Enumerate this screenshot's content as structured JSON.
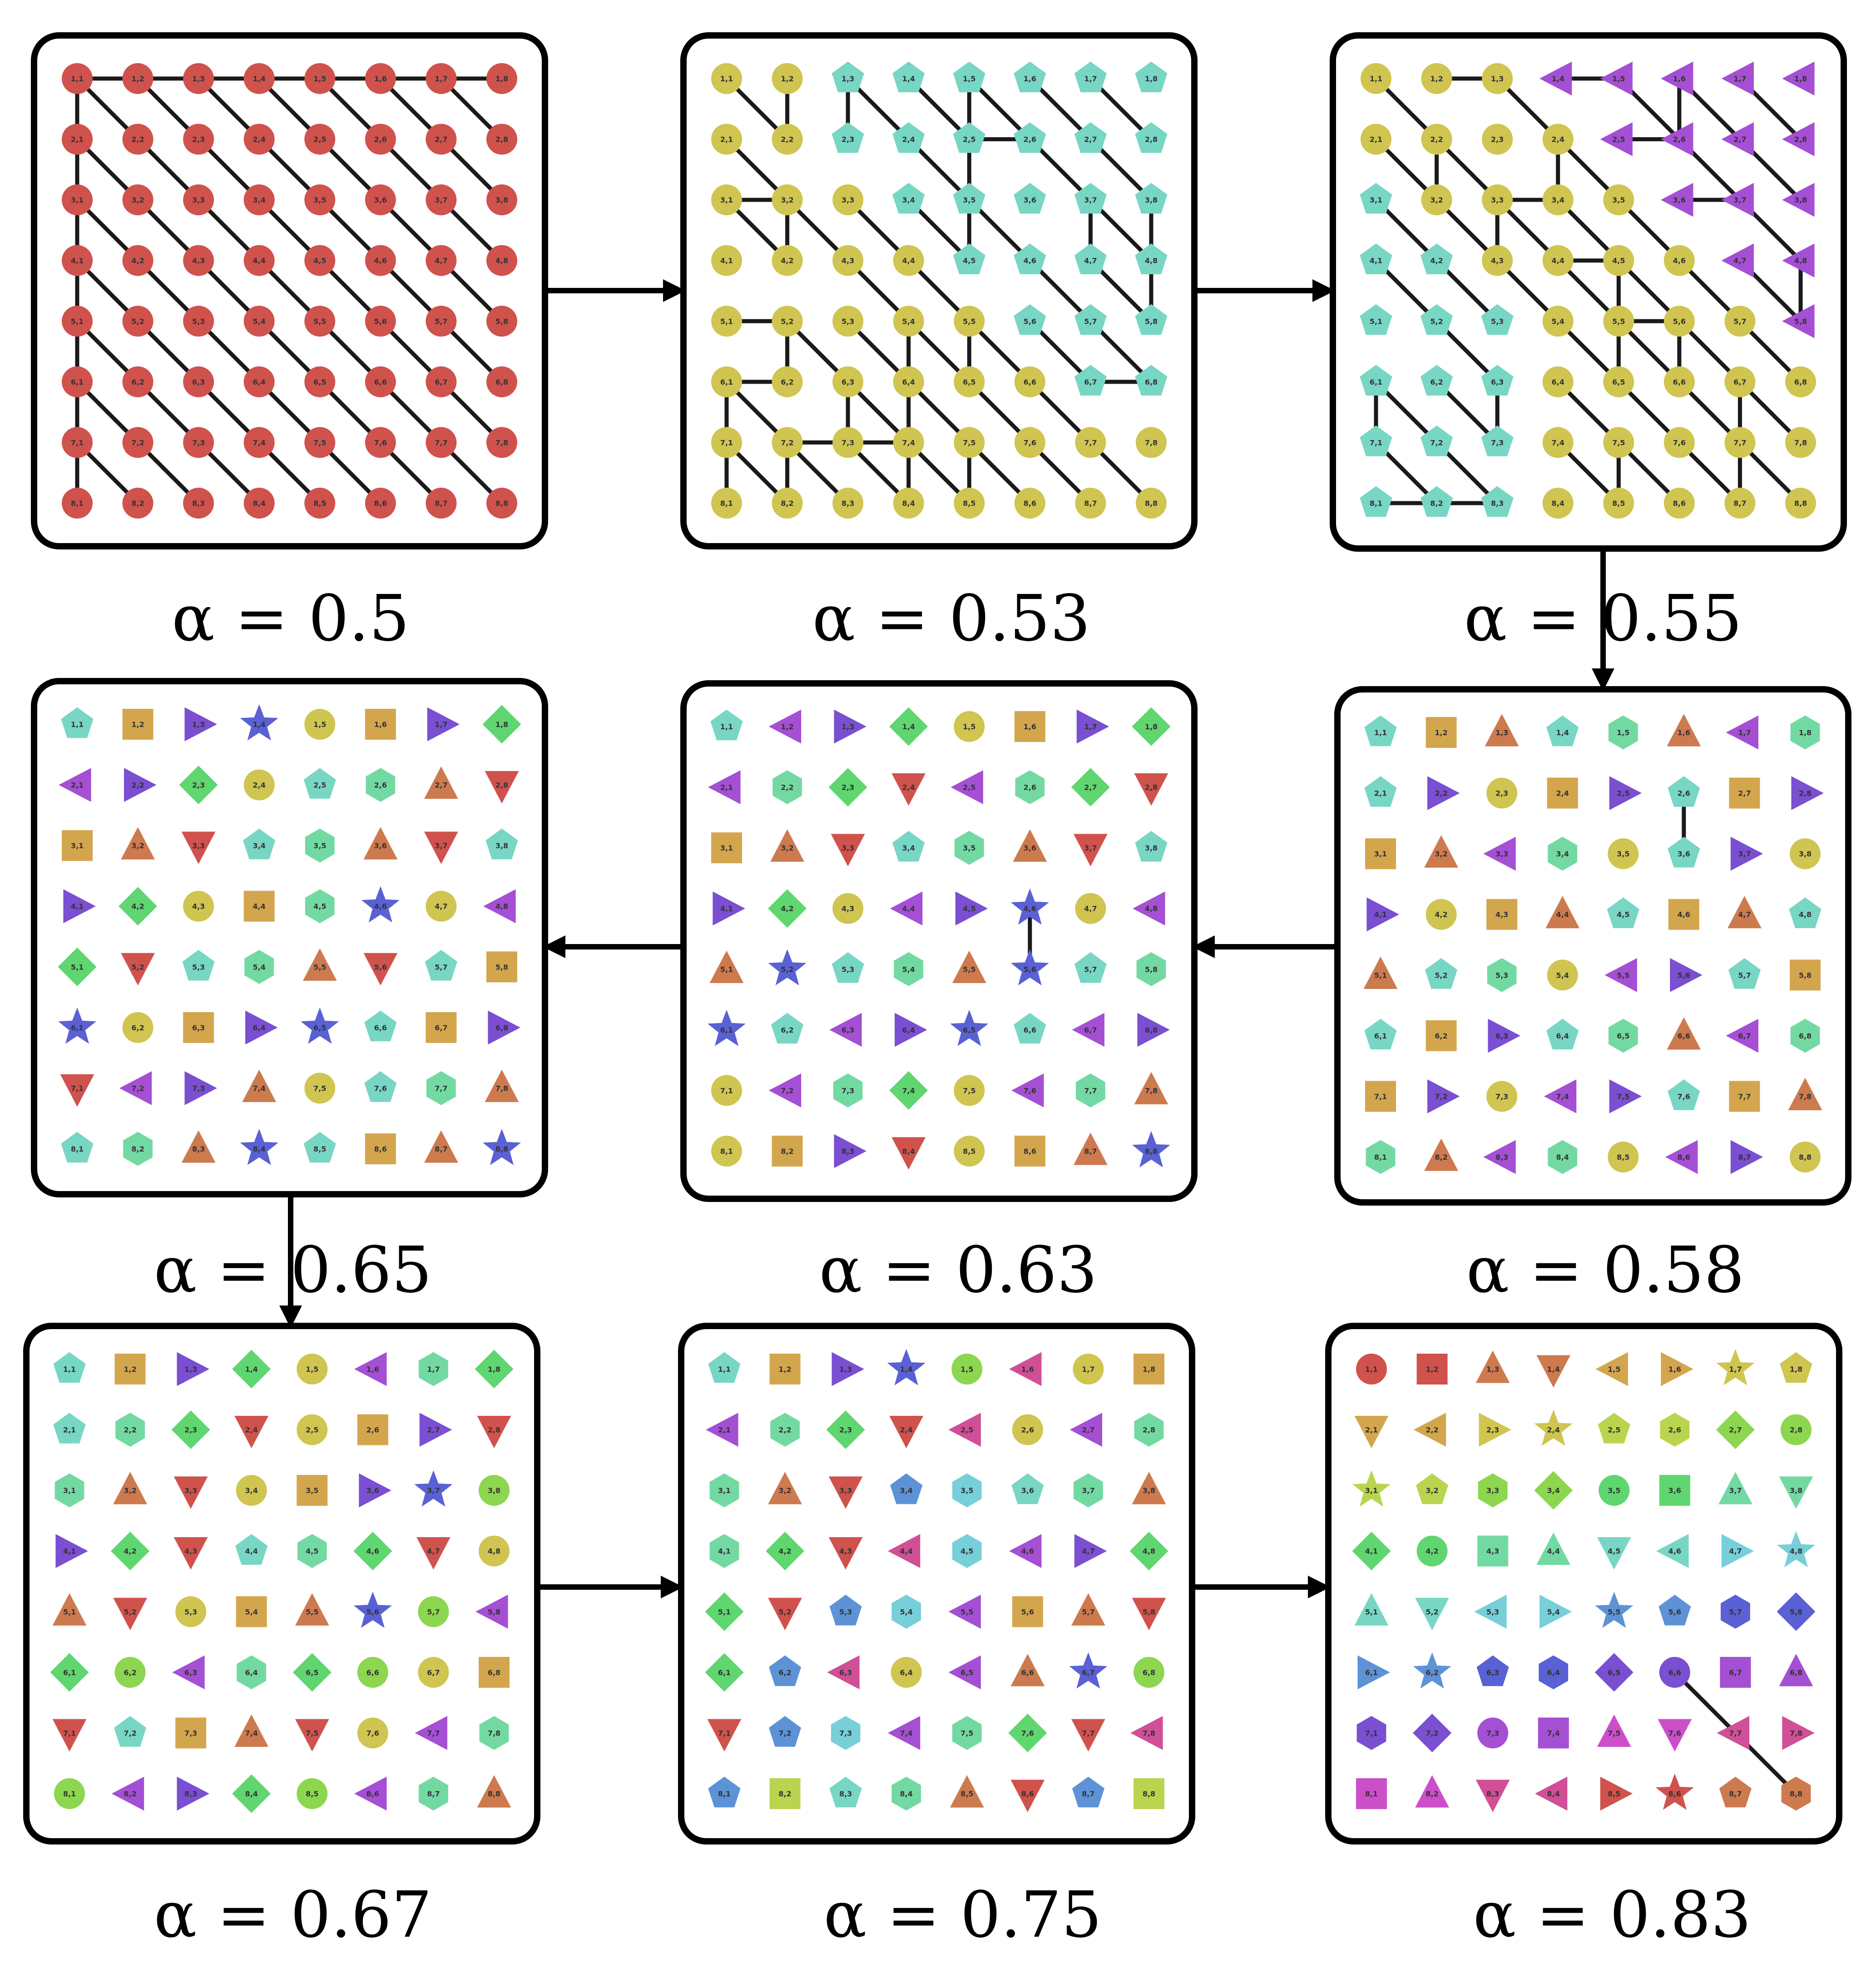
{
  "figure": {
    "panels": [
      {
        "label": "α = 0.5",
        "alpha": 0.5,
        "regime": "single-cluster"
      },
      {
        "label": "α = 0.53",
        "alpha": 0.53,
        "regime": "two-clusters"
      },
      {
        "label": "α = 0.55",
        "alpha": 0.55,
        "regime": "three-clusters"
      },
      {
        "label": "α = 0.58",
        "alpha": 0.58,
        "regime": "fragmenting"
      },
      {
        "label": "α = 0.63",
        "alpha": 0.63,
        "regime": "fragmenting"
      },
      {
        "label": "α = 0.65",
        "alpha": 0.65,
        "regime": "fragmenting"
      },
      {
        "label": "α = 0.67",
        "alpha": 0.67,
        "regime": "fragmenting"
      },
      {
        "label": "α = 0.75",
        "alpha": 0.75,
        "regime": "mostly-isolated"
      },
      {
        "label": "α = 0.83",
        "alpha": 0.83,
        "regime": "isolated"
      }
    ],
    "flow_order": [
      0,
      1,
      2,
      3,
      4,
      5,
      6,
      7,
      8
    ],
    "grid_rows": 8,
    "grid_cols": 8,
    "edge_color": "#1a1a1a",
    "panel_border_color": "#000000",
    "palette": [
      "#d0524d",
      "#cd7a4f",
      "#d3a64e",
      "#cfc550",
      "#b9d54f",
      "#8dd64f",
      "#5fd670",
      "#73d9a2",
      "#78d6c4",
      "#77cfd9",
      "#5d93d6",
      "#5a61d4",
      "#7a4fd1",
      "#a54fd4",
      "#cc4fc9",
      "#d04f96"
    ],
    "shapes": [
      "circle",
      "square",
      "triangle-up",
      "triangle-down",
      "triangle-left",
      "triangle-right",
      "star",
      "pentagon",
      "hexagon",
      "diamond"
    ]
  }
}
